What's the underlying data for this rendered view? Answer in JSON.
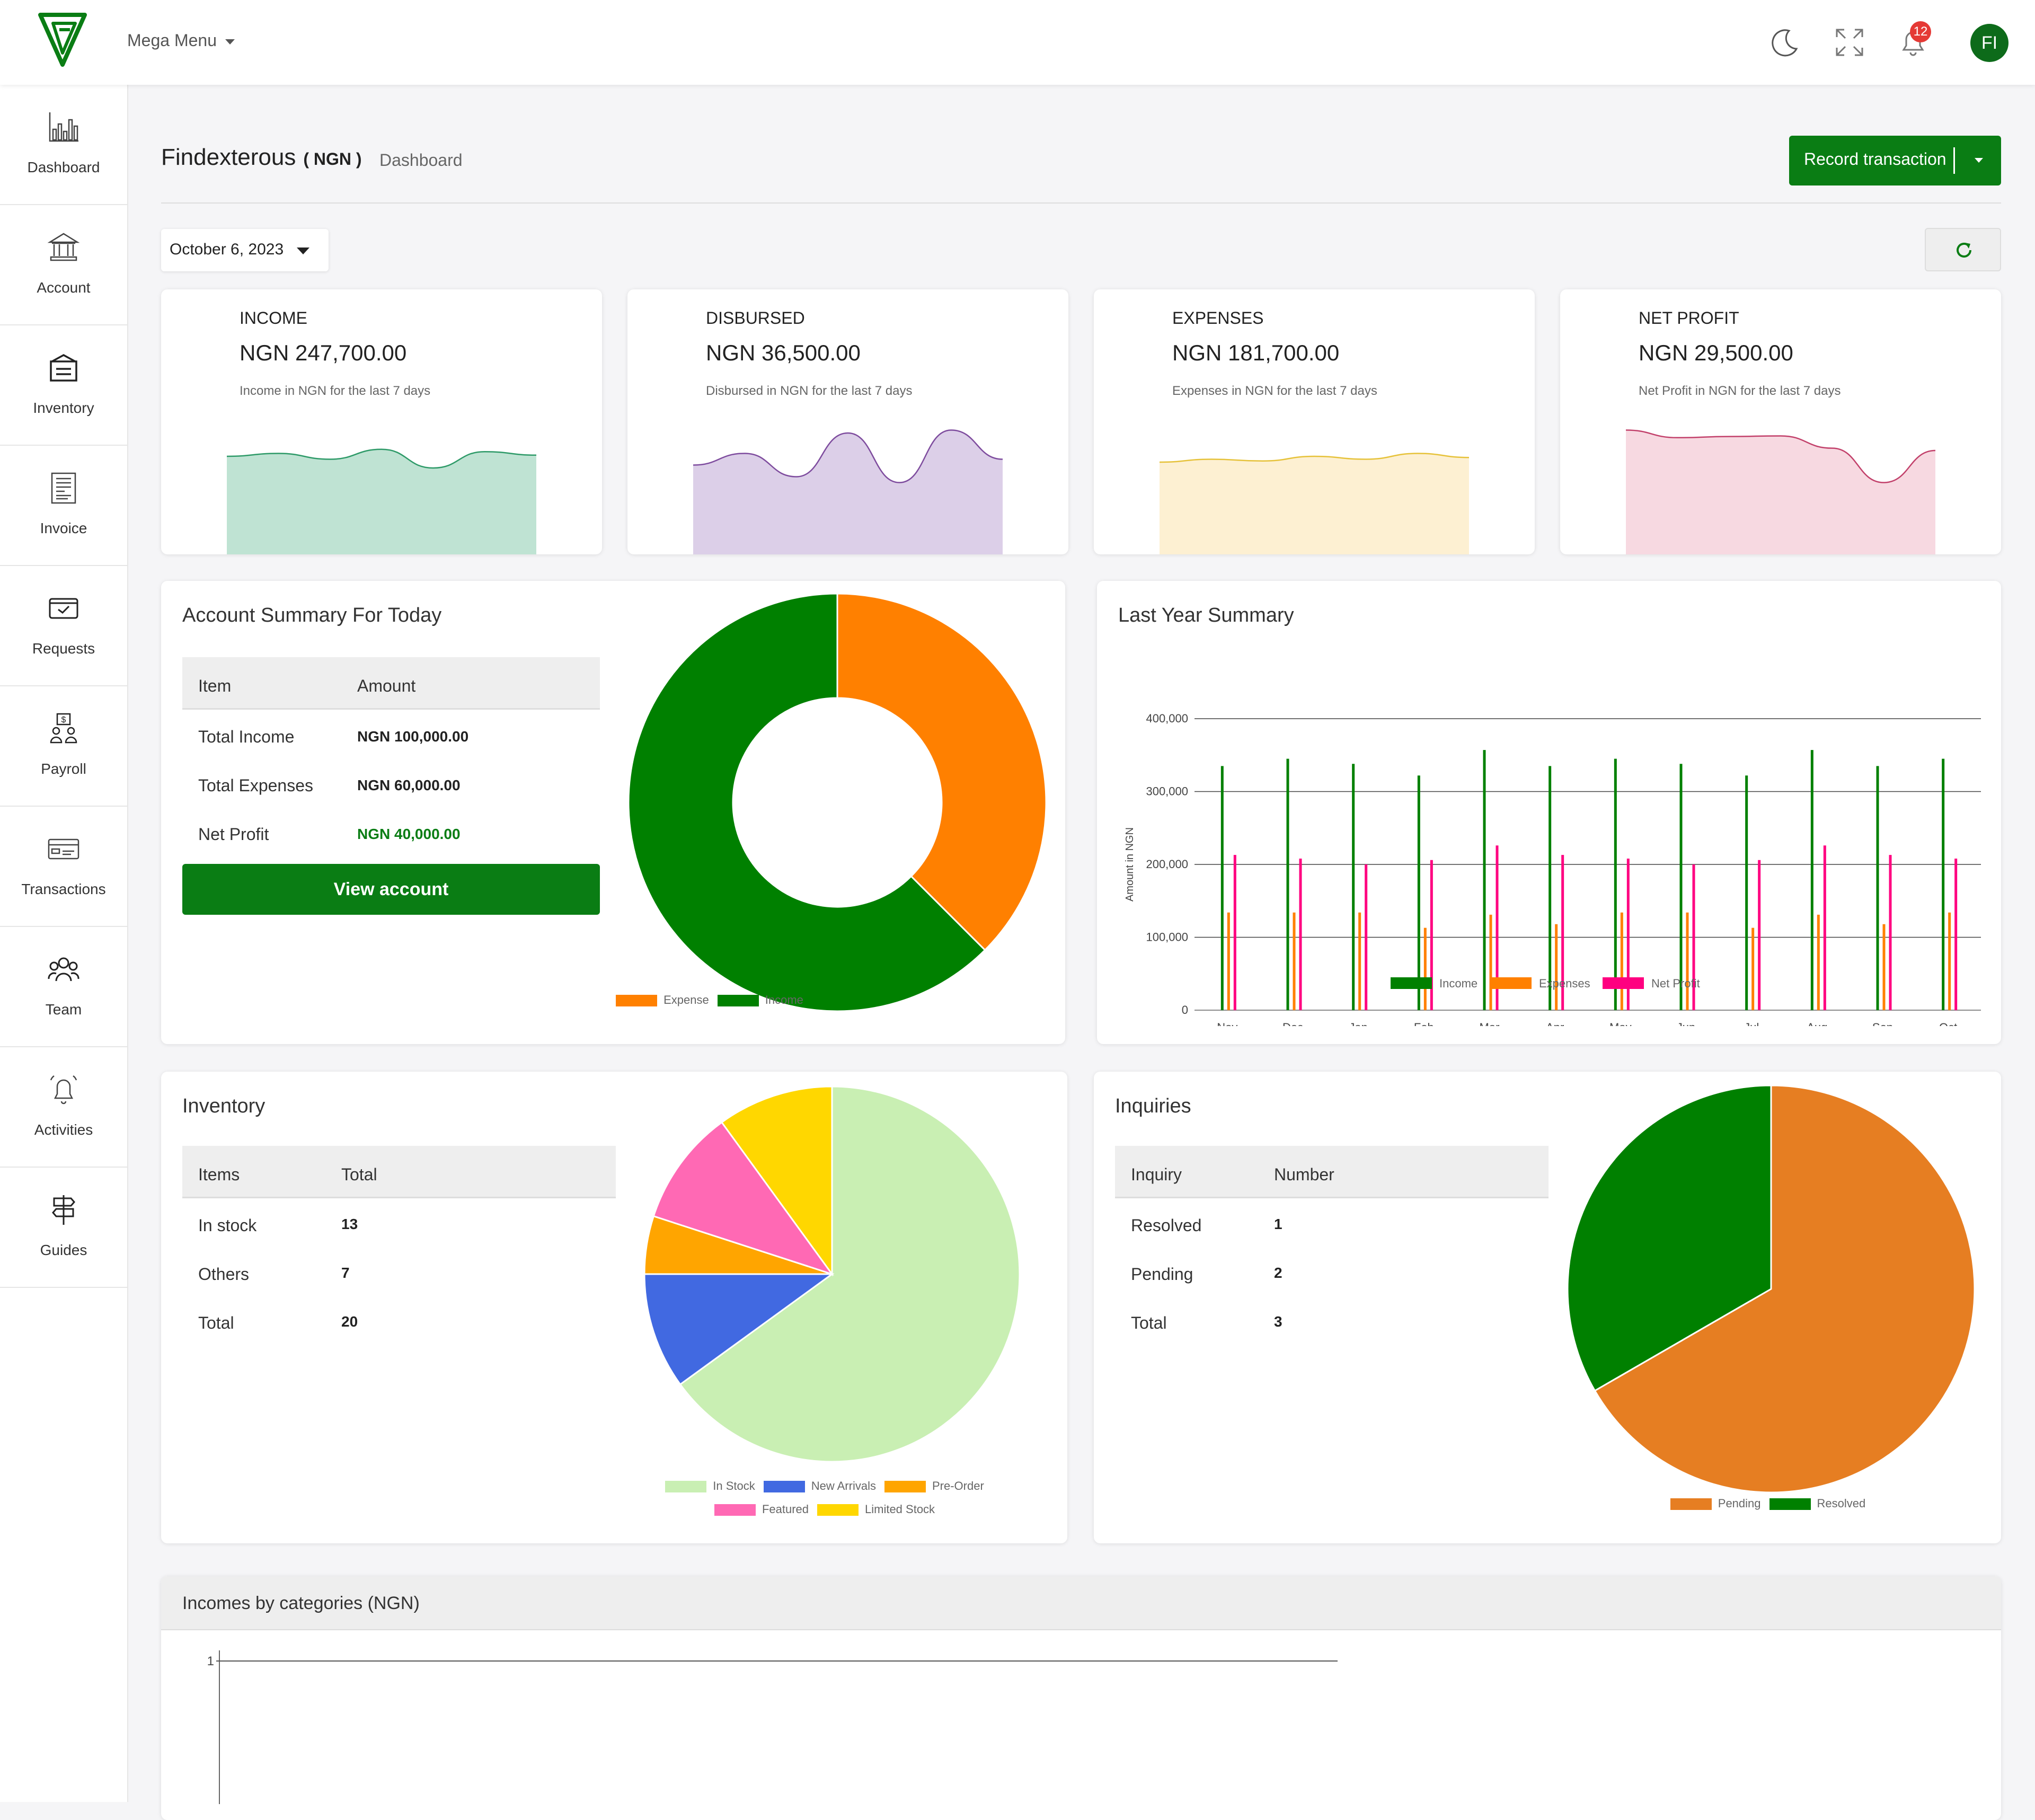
{
  "topbar": {
    "menu_label": "Mega Menu",
    "notification_count": "12",
    "avatar_initials": "FI"
  },
  "sidebar": {
    "items": [
      {
        "label": "Dashboard",
        "icon": "dashboard-icon"
      },
      {
        "label": "Account",
        "icon": "bank-icon"
      },
      {
        "label": "Inventory",
        "icon": "inventory-icon"
      },
      {
        "label": "Invoice",
        "icon": "invoice-icon"
      },
      {
        "label": "Requests",
        "icon": "requests-icon"
      },
      {
        "label": "Payroll",
        "icon": "payroll-icon"
      },
      {
        "label": "Transactions",
        "icon": "transactions-icon"
      },
      {
        "label": "Team",
        "icon": "team-icon"
      },
      {
        "label": "Activities",
        "icon": "bell-ringing-icon"
      },
      {
        "label": "Guides",
        "icon": "signpost-icon"
      }
    ]
  },
  "header": {
    "company": "Findexterous",
    "currency": "( NGN )",
    "breadcrumb": "Dashboard",
    "record_button": "Record transaction",
    "date": "October 6, 2023"
  },
  "stats": [
    {
      "title": "INCOME",
      "value": "NGN 247,700.00",
      "subtitle": "Income in NGN for the last 7 days",
      "color": "#2e9a68",
      "fill": "#bfe3d3"
    },
    {
      "title": "DISBURSED",
      "value": "NGN 36,500.00",
      "subtitle": "Disbursed in NGN for the last 7 days",
      "color": "#7e4c9e",
      "fill": "#dccfe8"
    },
    {
      "title": "EXPENSES",
      "value": "NGN 181,700.00",
      "subtitle": "Expenses in NGN for the last 7 days",
      "color": "#e6c23a",
      "fill": "#fdf0d2"
    },
    {
      "title": "NET PROFIT",
      "value": "NGN 29,500.00",
      "subtitle": "Net Profit in NGN for the last 7 days",
      "color": "#c2416b",
      "fill": "#f7d9e1"
    }
  ],
  "account_summary": {
    "title": "Account Summary For Today",
    "headers": [
      "Item",
      "Amount"
    ],
    "rows": [
      {
        "label": "Total Income",
        "value": "NGN 100,000.00"
      },
      {
        "label": "Total Expenses",
        "value": "NGN 60,000.00"
      },
      {
        "label": "Net Profit",
        "value": "NGN 40,000.00"
      }
    ],
    "button": "View account"
  },
  "last_year": {
    "title": "Last Year Summary"
  },
  "inventory": {
    "title": "Inventory",
    "headers": [
      "Items",
      "Total"
    ],
    "rows": [
      {
        "label": "In stock",
        "value": "13"
      },
      {
        "label": "Others",
        "value": "7"
      },
      {
        "label": "Total",
        "value": "20"
      }
    ]
  },
  "inquiries": {
    "title": "Inquiries",
    "headers": [
      "Inquiry",
      "Number"
    ],
    "rows": [
      {
        "label": "Resolved",
        "value": "1"
      },
      {
        "label": "Pending",
        "value": "2"
      },
      {
        "label": "Total",
        "value": "3"
      }
    ]
  },
  "incomes_by_categories": {
    "title": "Incomes by categories (NGN)"
  },
  "chart_data": [
    {
      "type": "area",
      "chart": "income-sparkline",
      "values": [
        0.5,
        0.55,
        0.45,
        0.62,
        0.3,
        0.58,
        0.52
      ],
      "title": "",
      "xlabel": "",
      "ylabel": "",
      "grid": false
    },
    {
      "type": "area",
      "chart": "disbursed-sparkline",
      "values": [
        0.35,
        0.55,
        0.15,
        0.9,
        0.05,
        0.95,
        0.45
      ],
      "title": "",
      "xlabel": "",
      "ylabel": "",
      "grid": false
    },
    {
      "type": "area",
      "chart": "expenses-sparkline",
      "values": [
        0.4,
        0.45,
        0.42,
        0.5,
        0.45,
        0.55,
        0.48
      ],
      "title": "",
      "xlabel": "",
      "ylabel": "",
      "grid": false
    },
    {
      "type": "area",
      "chart": "net-profit-sparkline",
      "values": [
        0.95,
        0.82,
        0.84,
        0.85,
        0.64,
        0.05,
        0.6
      ],
      "title": "",
      "xlabel": "",
      "ylabel": "",
      "grid": false
    },
    {
      "type": "pie",
      "chart": "account-summary-donut",
      "donut": true,
      "categories": [
        "Expense",
        "Income"
      ],
      "values": [
        60000,
        100000
      ],
      "colors": [
        "#ff8000",
        "#008000"
      ],
      "legend": "bottom"
    },
    {
      "type": "bar",
      "chart": "last-year-summary",
      "categories": [
        "Nov",
        "Dec",
        "Jan",
        "Feb",
        "Mar",
        "Apr",
        "May",
        "Jun",
        "Jul",
        "Aug",
        "Sep",
        "Oct"
      ],
      "series": [
        {
          "name": "Income",
          "color": "#008000",
          "values": [
            335000,
            345000,
            338000,
            322000,
            357000,
            335000,
            345000,
            338000,
            322000,
            357000,
            335000,
            345000
          ]
        },
        {
          "name": "Expenses",
          "color": "#ff8000",
          "values": [
            134000,
            134000,
            134000,
            113000,
            131000,
            118000,
            134000,
            134000,
            113000,
            131000,
            118000,
            134000
          ]
        },
        {
          "name": "Net Profit",
          "color": "#ff0080",
          "values": [
            213000,
            208000,
            200000,
            206000,
            226000,
            213000,
            208000,
            200000,
            206000,
            226000,
            213000,
            208000
          ]
        }
      ],
      "yticks": [
        "0",
        "100,000",
        "200,000",
        "300,000",
        "400,000"
      ],
      "ylim": [
        0,
        400000
      ],
      "ylabel": "Amount in NGN",
      "xlabel": "",
      "grid": true,
      "legend": "bottom"
    },
    {
      "type": "pie",
      "chart": "inventory-pie",
      "categories": [
        "In Stock",
        "New Arrivals",
        "Pre-Order",
        "Featured",
        "Limited Stock"
      ],
      "values": [
        13,
        2,
        1,
        2,
        2
      ],
      "colors": [
        "#c9efb3",
        "#4169e1",
        "#ffa500",
        "#ff69b4",
        "#ffd700"
      ],
      "legend": "bottom"
    },
    {
      "type": "pie",
      "chart": "inquiries-pie",
      "categories": [
        "Pending",
        "Resolved"
      ],
      "values": [
        2,
        1
      ],
      "colors": [
        "#e67e22",
        "#008000"
      ],
      "legend": "bottom"
    },
    {
      "type": "line",
      "chart": "incomes-by-categories",
      "yticks": [
        "1"
      ],
      "ylim": [
        0,
        1
      ],
      "series": [],
      "title": "Incomes by categories (NGN)"
    }
  ]
}
